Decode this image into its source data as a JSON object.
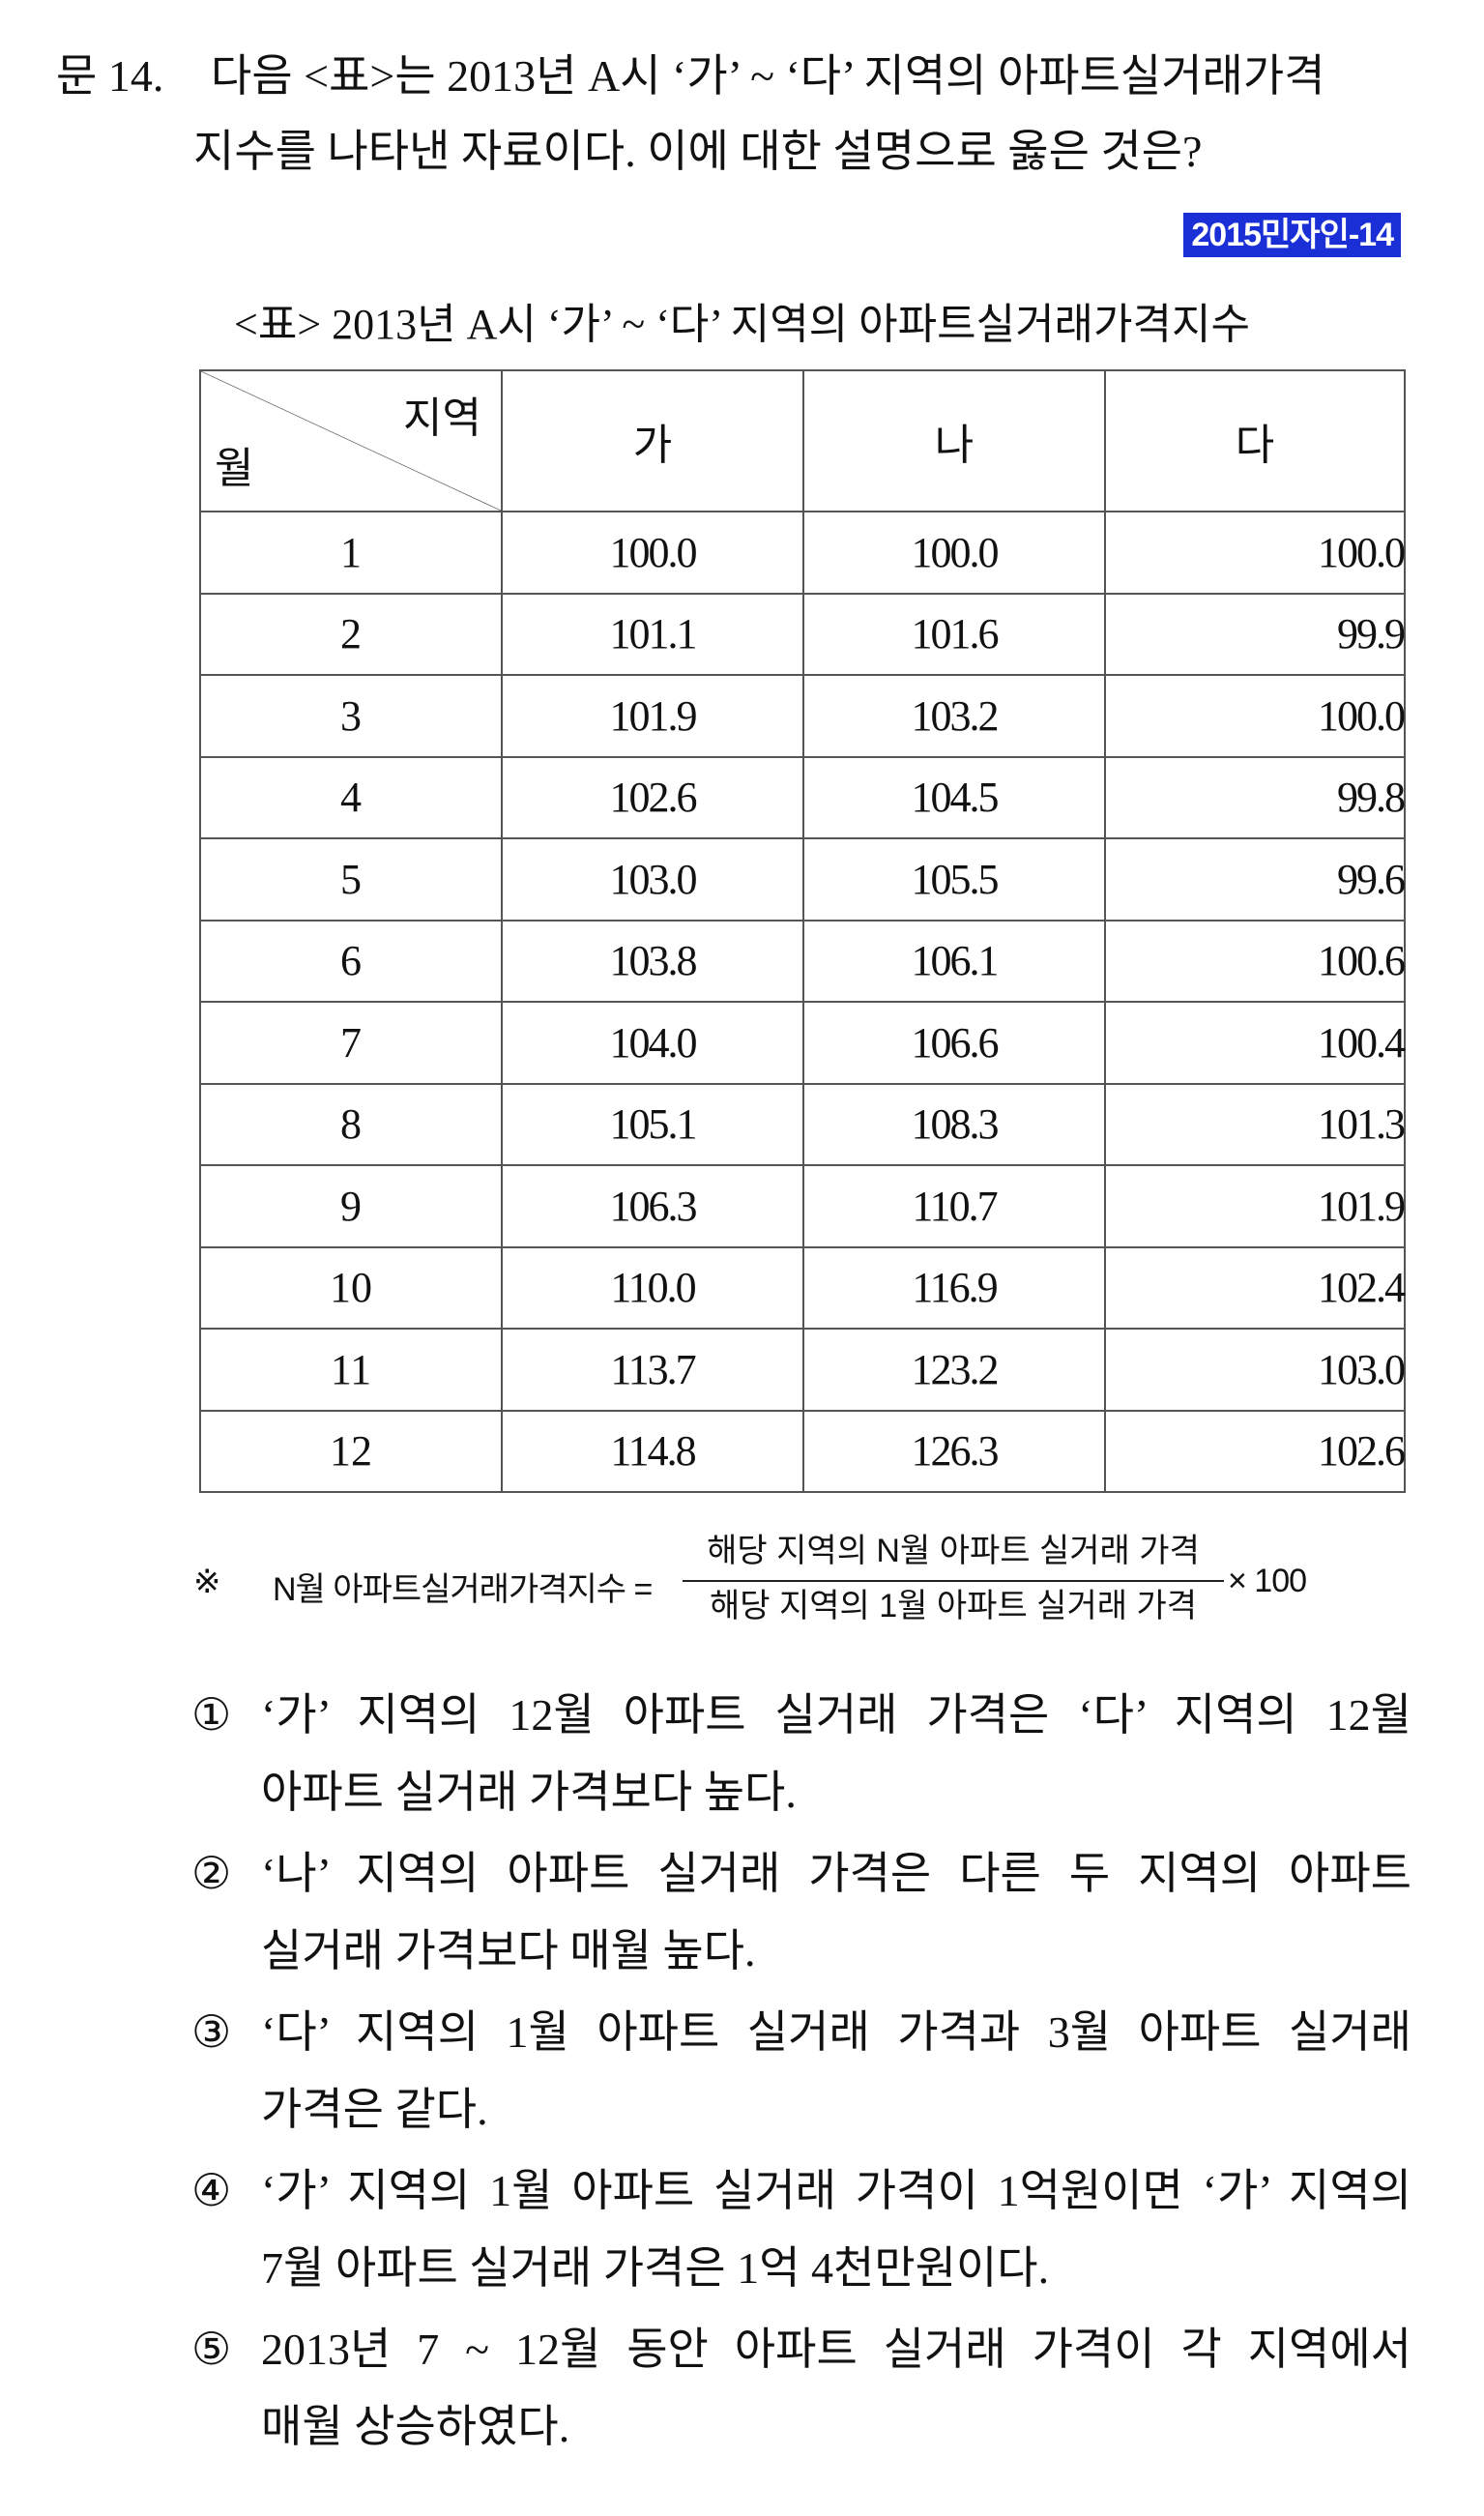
{
  "question": {
    "number": "문 14.",
    "line1": "다음 <표>는 2013년 A시 ‘가’ ~ ‘다’ 지역의 아파트실거래가격",
    "line2": "지수를 나타낸 자료이다. 이에 대한 설명으로 옳은 것은?"
  },
  "source_badge": "2015민자인-14",
  "table": {
    "title": "<표> 2013년 A시 ‘가’ ~ ‘다’ 지역의 아파트실거래가격지수",
    "corner_region": "지역",
    "corner_month": "월",
    "columns": [
      "가",
      "나",
      "다"
    ],
    "rows": [
      {
        "month": "1",
        "values": [
          "100.0",
          "100.0",
          "100.0"
        ]
      },
      {
        "month": "2",
        "values": [
          "101.1",
          "101.6",
          "99.9"
        ]
      },
      {
        "month": "3",
        "values": [
          "101.9",
          "103.2",
          "100.0"
        ]
      },
      {
        "month": "4",
        "values": [
          "102.6",
          "104.5",
          "99.8"
        ]
      },
      {
        "month": "5",
        "values": [
          "103.0",
          "105.5",
          "99.6"
        ]
      },
      {
        "month": "6",
        "values": [
          "103.8",
          "106.1",
          "100.6"
        ]
      },
      {
        "month": "7",
        "values": [
          "104.0",
          "106.6",
          "100.4"
        ]
      },
      {
        "month": "8",
        "values": [
          "105.1",
          "108.3",
          "101.3"
        ]
      },
      {
        "month": "9",
        "values": [
          "106.3",
          "110.7",
          "101.9"
        ]
      },
      {
        "month": "10",
        "values": [
          "110.0",
          "116.9",
          "102.4"
        ]
      },
      {
        "month": "11",
        "values": [
          "113.7",
          "123.2",
          "103.0"
        ]
      },
      {
        "month": "12",
        "values": [
          "114.8",
          "126.3",
          "102.6"
        ]
      }
    ]
  },
  "note": {
    "mark": "※",
    "lhs": "N월 아파트실거래가격지수 =",
    "numerator": "해당 지역의 N월 아파트 실거래 가격",
    "denominator": "해당 지역의 1월 아파트 실거래 가격",
    "multiplier": "× 100"
  },
  "choices": [
    {
      "mark": "①",
      "line1": "‘가’ 지역의 12월 아파트 실거래 가격은 ‘다’ 지역의 12월",
      "line2": "아파트 실거래 가격보다 높다."
    },
    {
      "mark": "②",
      "line1": "‘나’ 지역의 아파트 실거래 가격은 다른 두 지역의 아파트",
      "line2": "실거래 가격보다 매월 높다."
    },
    {
      "mark": "③",
      "line1": "‘다’ 지역의 1월 아파트 실거래 가격과 3월 아파트 실거래",
      "line2": "가격은 같다."
    },
    {
      "mark": "④",
      "line1": "‘가’ 지역의 1월 아파트 실거래 가격이 1억원이면 ‘가’ 지역의",
      "line2": "7월 아파트 실거래 가격은 1억 4천만원이다."
    },
    {
      "mark": "⑤",
      "line1": "2013년 7 ~ 12월 동안 아파트 실거래 가격이 각 지역에서",
      "line2": "매월 상승하였다."
    }
  ]
}
